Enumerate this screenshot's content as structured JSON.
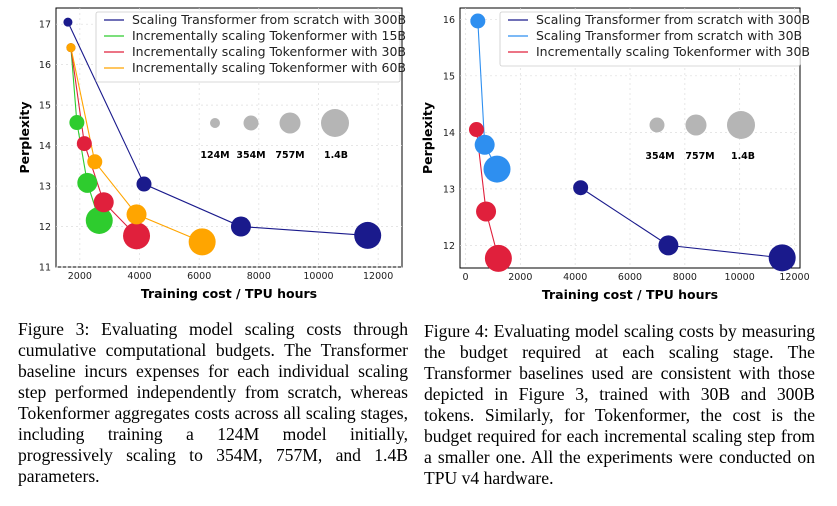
{
  "colors": {
    "transformer300": "#1a1a8c",
    "transformer30": "#2e8ff0",
    "tokenformer15": "#2ecc2e",
    "tokenformer30": "#e0203c",
    "tokenformer60": "#ffa500",
    "size_legend_gray": "#b5b5b5"
  },
  "chart_data": [
    {
      "id": "figure3",
      "type": "scatter",
      "xlabel": "Training cost / TPU hours",
      "ylabel": "Perplexity",
      "xlim": [
        1200,
        12800
      ],
      "ylim": [
        11,
        17.4
      ],
      "xticks": [
        2000,
        4000,
        6000,
        8000,
        10000,
        12000
      ],
      "yticks": [
        11,
        12,
        13,
        14,
        15,
        16,
        17
      ],
      "legend_position": "top-right",
      "size_legend": [
        "124M",
        "354M",
        "757M",
        "1.4B"
      ],
      "series": [
        {
          "name": "Scaling Transformer from scratch with 300B",
          "color_key": "transformer300",
          "points": [
            {
              "x": 1600,
              "y": 17.05,
              "size": "124M"
            },
            {
              "x": 4150,
              "y": 13.05,
              "size": "354M"
            },
            {
              "x": 7400,
              "y": 12.0,
              "size": "757M"
            },
            {
              "x": 11650,
              "y": 11.78,
              "size": "1.4B"
            }
          ]
        },
        {
          "name": "Incrementally scaling Tokenformer with 15B",
          "color_key": "tokenformer15",
          "points": [
            {
              "x": 1700,
              "y": 16.42,
              "size": "124M"
            },
            {
              "x": 1900,
              "y": 14.57,
              "size": "354M"
            },
            {
              "x": 2250,
              "y": 13.08,
              "size": "757M"
            },
            {
              "x": 2650,
              "y": 12.15,
              "size": "1.4B"
            }
          ]
        },
        {
          "name": "Incrementally scaling Tokenformer with 30B",
          "color_key": "tokenformer30",
          "points": [
            {
              "x": 1700,
              "y": 16.42,
              "size": "124M"
            },
            {
              "x": 2150,
              "y": 14.05,
              "size": "354M"
            },
            {
              "x": 2800,
              "y": 12.6,
              "size": "757M"
            },
            {
              "x": 3900,
              "y": 11.77,
              "size": "1.4B"
            }
          ]
        },
        {
          "name": "Incrementally scaling Tokenformer with 60B",
          "color_key": "tokenformer60",
          "points": [
            {
              "x": 1700,
              "y": 16.42,
              "size": "124M"
            },
            {
              "x": 2500,
              "y": 13.6,
              "size": "354M"
            },
            {
              "x": 3900,
              "y": 12.3,
              "size": "757M"
            },
            {
              "x": 6100,
              "y": 11.62,
              "size": "1.4B"
            }
          ]
        }
      ]
    },
    {
      "id": "figure4",
      "type": "scatter",
      "xlabel": "Training cost / TPU hours",
      "ylabel": "Perplexity",
      "xlim": [
        -200,
        12200
      ],
      "ylim": [
        11.6,
        16.2
      ],
      "xticks": [
        0,
        2000,
        4000,
        6000,
        8000,
        10000,
        12000
      ],
      "yticks": [
        12,
        13,
        14,
        15,
        16
      ],
      "legend_position": "top-right",
      "size_legend": [
        "354M",
        "757M",
        "1.4B"
      ],
      "series": [
        {
          "name": "Scaling Transformer from scratch with 300B",
          "color_key": "transformer300",
          "points": [
            {
              "x": 4200,
              "y": 13.02,
              "size": "354M"
            },
            {
              "x": 7400,
              "y": 12.0,
              "size": "757M"
            },
            {
              "x": 11550,
              "y": 11.78,
              "size": "1.4B"
            }
          ]
        },
        {
          "name": "Scaling Transformer from scratch with 30B",
          "color_key": "transformer30",
          "points": [
            {
              "x": 450,
              "y": 15.97,
              "size": "354M"
            },
            {
              "x": 700,
              "y": 13.78,
              "size": "757M"
            },
            {
              "x": 1150,
              "y": 13.35,
              "size": "1.4B"
            }
          ]
        },
        {
          "name": "Incrementally scaling Tokenformer with 30B",
          "color_key": "tokenformer30",
          "points": [
            {
              "x": 400,
              "y": 14.05,
              "size": "354M"
            },
            {
              "x": 750,
              "y": 12.6,
              "size": "757M"
            },
            {
              "x": 1200,
              "y": 11.77,
              "size": "1.4B"
            }
          ]
        }
      ]
    }
  ],
  "captions": {
    "figure3": "Figure 3: Evaluating model scaling costs through cumulative computational budgets. The Transformer baseline incurs expenses for each individual scaling step performed independently from scratch, whereas Tokenformer aggregates costs across all scaling stages, including training a 124M model initially, progressively scaling to 354M, 757M, and 1.4B parameters.",
    "figure4": "Figure 4: Evaluating model scaling costs by measuring the budget required at each scaling stage. The Transformer baselines used are consistent with those depicted in Figure 3, trained with 30B and 300B tokens. Similarly, for Tokenformer, the cost is the budget required for each incremental scaling step from a smaller one. All the experiments were conducted on TPU v4 hardware."
  }
}
